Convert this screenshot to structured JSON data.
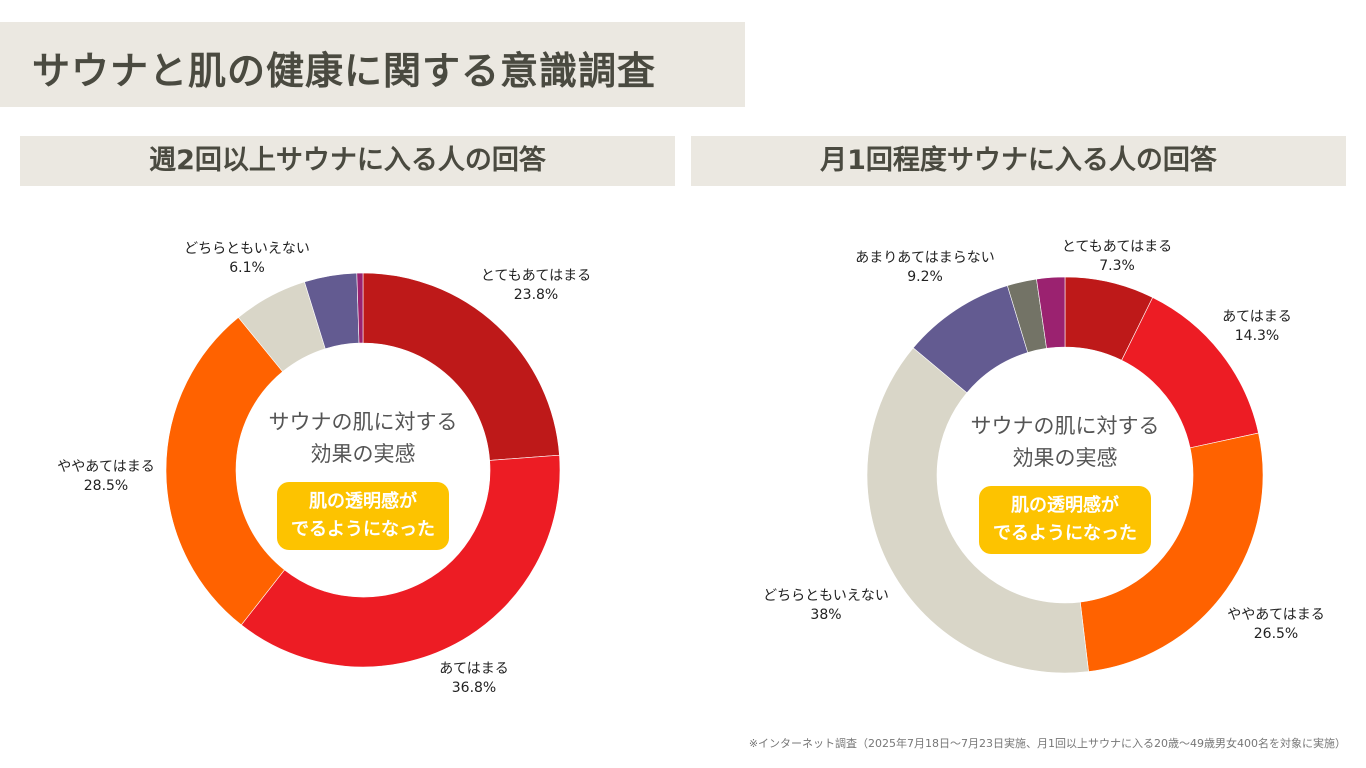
{
  "title": "サウナと肌の健康に関する意識調査",
  "center_text": [
    "サウナの肌に対する",
    "効果の実感"
  ],
  "badge_text": [
    "肌の透明感が",
    "でるようになった"
  ],
  "badge_color": "#fdc300",
  "footnote": "※インターネット調査（2025年7月18日～7月23日実施、月1回以上サウナに入る20歳～49歳男女400名を対象に実施）",
  "chart_data": [
    {
      "type": "pie",
      "donut": true,
      "title": "週2回以上サウナに入る人の回答",
      "slices": [
        {
          "name": "とてもあてはまる",
          "value": 23.8,
          "label": "23.8%",
          "color": "#be1919"
        },
        {
          "name": "あてはまる",
          "value": 36.8,
          "label": "36.8%",
          "color": "#ed1c24"
        },
        {
          "name": "ややあてはまる",
          "value": 28.5,
          "label": "28.5%",
          "color": "#ff6200"
        },
        {
          "name": "どちらともいえない",
          "value": 6.1,
          "label": "6.1%",
          "color": "#d9d6c8"
        },
        {
          "name": "",
          "value": 4.3,
          "label": "",
          "color": "#635b91"
        },
        {
          "name": "",
          "value": 0.5,
          "label": "",
          "color": "#9b2270"
        }
      ]
    },
    {
      "type": "pie",
      "donut": true,
      "title": "月1回程度サウナに入る人の回答",
      "slices": [
        {
          "name": "とてもあてはまる",
          "value": 7.3,
          "label": "7.3%",
          "color": "#be1919"
        },
        {
          "name": "あてはまる",
          "value": 14.3,
          "label": "14.3%",
          "color": "#ed1c24"
        },
        {
          "name": "ややあてはまる",
          "value": 26.5,
          "label": "26.5%",
          "color": "#ff6200"
        },
        {
          "name": "どちらともいえない",
          "value": 38,
          "label": "38%",
          "color": "#d9d6c8"
        },
        {
          "name": "あまりあてはまらない",
          "value": 9.2,
          "label": "9.2%",
          "color": "#635b91"
        },
        {
          "name": "",
          "value": 2.4,
          "label": "",
          "color": "#737366"
        },
        {
          "name": "",
          "value": 2.3,
          "label": "",
          "color": "#9b2270"
        }
      ]
    }
  ]
}
